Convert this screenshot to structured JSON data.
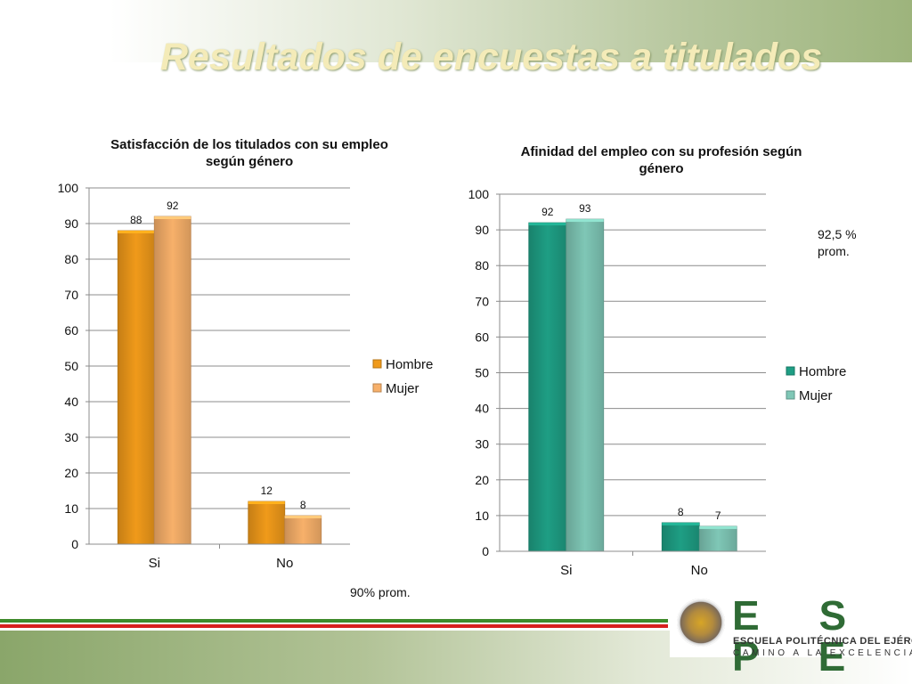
{
  "slide": {
    "title": "Resultados de encuestas a titulados",
    "note_left": "90% prom.",
    "note_right": "92,5 % prom."
  },
  "logo": {
    "letters": "E S P E",
    "name": "ESCUELA POLITÉCNICA DEL EJÉRCITO",
    "motto": "CAMINO A LA EXCELENCIA",
    "seal_text": "ESCUELA POLITÉCNICA DEL EJÉRCITO ECUADOR",
    "green": "#2f6b35"
  },
  "chart_data": [
    {
      "type": "bar",
      "title": "Satisfacción de los titulados con su empleo según género",
      "categories": [
        "Si",
        "No"
      ],
      "series": [
        {
          "name": "Hombre",
          "values": [
            88,
            12
          ],
          "color": "#f09a1a"
        },
        {
          "name": "Mujer",
          "values": [
            92,
            8
          ],
          "color": "#f7b06a"
        }
      ],
      "ylim": [
        0,
        100
      ],
      "yticks": [
        0,
        10,
        20,
        30,
        40,
        50,
        60,
        70,
        80,
        90,
        100
      ],
      "grid": true,
      "legend": "right"
    },
    {
      "type": "bar",
      "title": "Afinidad del empleo con su profesión según género",
      "categories": [
        "Si",
        "No"
      ],
      "series": [
        {
          "name": "Hombre",
          "values": [
            92,
            8
          ],
          "color": "#1e9e84"
        },
        {
          "name": "Mujer",
          "values": [
            93,
            7
          ],
          "color": "#7fc7b6"
        }
      ],
      "ylim": [
        0,
        100
      ],
      "yticks": [
        0,
        10,
        20,
        30,
        40,
        50,
        60,
        70,
        80,
        90,
        100
      ],
      "grid": true,
      "legend": "right"
    }
  ]
}
